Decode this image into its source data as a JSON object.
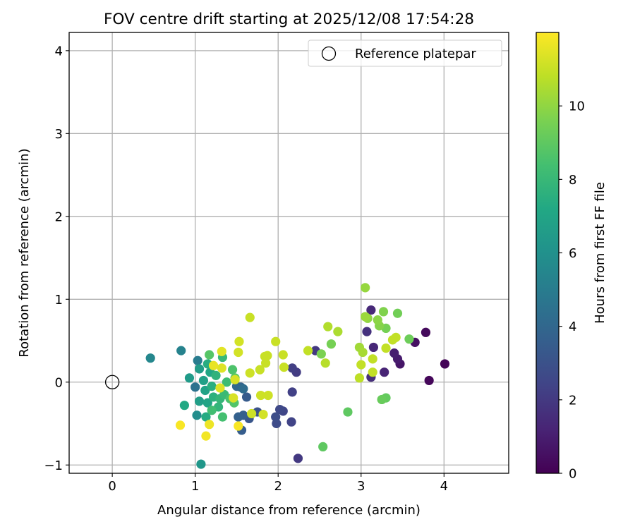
{
  "chart_data": {
    "type": "scatter",
    "title": "FOV centre drift starting at 2025/12/08 17:54:28",
    "xlabel": "Angular distance from reference (arcmin)",
    "ylabel": "Rotation from reference (arcmin)",
    "xlim": [
      -0.52,
      4.78
    ],
    "ylim": [
      -1.1,
      4.22
    ],
    "xticks": [
      0,
      1,
      2,
      3,
      4
    ],
    "yticks": [
      -1,
      0,
      1,
      2,
      3,
      4
    ],
    "grid": true,
    "legend": {
      "label": "Reference platepar",
      "location": "top-right"
    },
    "reference_point": {
      "x": 0,
      "y": 0
    },
    "colorbar": {
      "label": "Hours from first FF file",
      "min": 0,
      "max": 12,
      "ticks": [
        0,
        2,
        4,
        6,
        8,
        10
      ],
      "colormap": "viridis"
    },
    "points": [
      {
        "x": 4.01,
        "y": 0.22,
        "h": 0.1
      },
      {
        "x": 3.82,
        "y": 0.02,
        "h": 0.2
      },
      {
        "x": 3.78,
        "y": 0.6,
        "h": 0.3
      },
      {
        "x": 3.65,
        "y": 0.48,
        "h": 0.5
      },
      {
        "x": 3.47,
        "y": 0.22,
        "h": 0.7
      },
      {
        "x": 3.44,
        "y": 0.28,
        "h": 0.9
      },
      {
        "x": 3.4,
        "y": 0.35,
        "h": 1.0
      },
      {
        "x": 3.28,
        "y": 0.12,
        "h": 1.2
      },
      {
        "x": 3.15,
        "y": 0.42,
        "h": 1.3
      },
      {
        "x": 3.12,
        "y": 0.87,
        "h": 1.4
      },
      {
        "x": 3.12,
        "y": 0.06,
        "h": 1.6
      },
      {
        "x": 3.07,
        "y": 0.61,
        "h": 1.7
      },
      {
        "x": 2.24,
        "y": -0.92,
        "h": 2.0
      },
      {
        "x": 2.45,
        "y": 0.38,
        "h": 2.0
      },
      {
        "x": 2.22,
        "y": 0.12,
        "h": 2.1
      },
      {
        "x": 2.17,
        "y": 0.17,
        "h": 2.2
      },
      {
        "x": 2.17,
        "y": -0.12,
        "h": 2.3
      },
      {
        "x": 2.16,
        "y": -0.48,
        "h": 2.4
      },
      {
        "x": 2.06,
        "y": -0.35,
        "h": 2.5
      },
      {
        "x": 2.02,
        "y": -0.33,
        "h": 2.6
      },
      {
        "x": 1.98,
        "y": -0.5,
        "h": 2.7
      },
      {
        "x": 1.97,
        "y": -0.42,
        "h": 2.8
      },
      {
        "x": 1.75,
        "y": -0.36,
        "h": 3.0
      },
      {
        "x": 1.65,
        "y": -0.44,
        "h": 3.2
      },
      {
        "x": 1.62,
        "y": -0.18,
        "h": 3.4
      },
      {
        "x": 1.56,
        "y": -0.58,
        "h": 3.5
      },
      {
        "x": 1.58,
        "y": -0.4,
        "h": 3.6
      },
      {
        "x": 1.52,
        "y": -0.42,
        "h": 3.7
      },
      {
        "x": 1.55,
        "y": -0.06,
        "h": 3.8
      },
      {
        "x": 1.5,
        "y": -0.05,
        "h": 4.0
      },
      {
        "x": 1.58,
        "y": -0.08,
        "h": 4.2
      },
      {
        "x": 1.0,
        "y": -0.06,
        "h": 4.5
      },
      {
        "x": 1.03,
        "y": 0.26,
        "h": 5.0
      },
      {
        "x": 0.83,
        "y": 0.38,
        "h": 5.3
      },
      {
        "x": 0.46,
        "y": 0.29,
        "h": 5.5
      },
      {
        "x": 1.02,
        "y": -0.4,
        "h": 5.8
      },
      {
        "x": 1.07,
        "y": -0.99,
        "h": 6.3
      },
      {
        "x": 0.93,
        "y": 0.05,
        "h": 6.5
      },
      {
        "x": 1.05,
        "y": 0.16,
        "h": 6.6
      },
      {
        "x": 1.05,
        "y": -0.23,
        "h": 6.7
      },
      {
        "x": 1.1,
        "y": 0.02,
        "h": 6.8
      },
      {
        "x": 1.12,
        "y": -0.1,
        "h": 6.9
      },
      {
        "x": 1.15,
        "y": -0.25,
        "h": 7.0
      },
      {
        "x": 1.18,
        "y": 0.12,
        "h": 7.1
      },
      {
        "x": 0.87,
        "y": -0.28,
        "h": 7.2
      },
      {
        "x": 1.13,
        "y": -0.42,
        "h": 7.3
      },
      {
        "x": 1.15,
        "y": 0.22,
        "h": 7.4
      },
      {
        "x": 1.2,
        "y": -0.05,
        "h": 7.5
      },
      {
        "x": 1.22,
        "y": -0.18,
        "h": 7.6
      },
      {
        "x": 1.25,
        "y": 0.08,
        "h": 7.7
      },
      {
        "x": 1.28,
        "y": -0.3,
        "h": 7.8
      },
      {
        "x": 1.3,
        "y": -0.2,
        "h": 7.9
      },
      {
        "x": 1.33,
        "y": 0.3,
        "h": 8.0
      },
      {
        "x": 1.35,
        "y": -0.15,
        "h": 8.1
      },
      {
        "x": 1.38,
        "y": 0.0,
        "h": 8.2
      },
      {
        "x": 1.2,
        "y": -0.34,
        "h": 8.3
      },
      {
        "x": 1.33,
        "y": -0.42,
        "h": 8.4
      },
      {
        "x": 1.42,
        "y": -0.2,
        "h": 8.5
      },
      {
        "x": 1.45,
        "y": 0.15,
        "h": 8.6
      },
      {
        "x": 1.47,
        "y": -0.25,
        "h": 8.7
      },
      {
        "x": 1.17,
        "y": 0.33,
        "h": 8.8
      },
      {
        "x": 1.48,
        "y": 0.05,
        "h": 8.9
      },
      {
        "x": 2.54,
        "y": -0.78,
        "h": 9.0
      },
      {
        "x": 2.84,
        "y": -0.36,
        "h": 9.0
      },
      {
        "x": 3.3,
        "y": -0.19,
        "h": 9.1
      },
      {
        "x": 3.25,
        "y": -0.21,
        "h": 9.2
      },
      {
        "x": 3.58,
        "y": 0.52,
        "h": 9.3
      },
      {
        "x": 3.44,
        "y": 0.83,
        "h": 9.4
      },
      {
        "x": 3.3,
        "y": 0.65,
        "h": 9.5
      },
      {
        "x": 2.64,
        "y": 0.46,
        "h": 9.5
      },
      {
        "x": 2.52,
        "y": 0.34,
        "h": 9.6
      },
      {
        "x": 3.27,
        "y": 0.85,
        "h": 9.7
      },
      {
        "x": 3.22,
        "y": 0.68,
        "h": 9.8
      },
      {
        "x": 3.2,
        "y": 0.75,
        "h": 9.9
      },
      {
        "x": 3.08,
        "y": 0.77,
        "h": 10.0
      },
      {
        "x": 3.05,
        "y": 1.14,
        "h": 10.1
      },
      {
        "x": 3.05,
        "y": 0.79,
        "h": 10.2
      },
      {
        "x": 2.98,
        "y": 0.42,
        "h": 10.3
      },
      {
        "x": 3.02,
        "y": 0.36,
        "h": 10.4
      },
      {
        "x": 2.72,
        "y": 0.61,
        "h": 10.5
      },
      {
        "x": 2.6,
        "y": 0.67,
        "h": 10.6
      },
      {
        "x": 2.57,
        "y": 0.23,
        "h": 10.7
      },
      {
        "x": 2.98,
        "y": 0.05,
        "h": 10.8
      },
      {
        "x": 3.0,
        "y": 0.21,
        "h": 10.9
      },
      {
        "x": 3.14,
        "y": 0.12,
        "h": 10.9
      },
      {
        "x": 3.14,
        "y": 0.28,
        "h": 10.9
      },
      {
        "x": 3.3,
        "y": 0.41,
        "h": 10.9
      },
      {
        "x": 3.38,
        "y": 0.51,
        "h": 10.9
      },
      {
        "x": 3.42,
        "y": 0.54,
        "h": 10.9
      },
      {
        "x": 2.36,
        "y": 0.38,
        "h": 10.9
      },
      {
        "x": 2.07,
        "y": 0.18,
        "h": 11.0
      },
      {
        "x": 2.06,
        "y": 0.33,
        "h": 11.0
      },
      {
        "x": 1.97,
        "y": 0.49,
        "h": 11.0
      },
      {
        "x": 1.87,
        "y": 0.32,
        "h": 11.0
      },
      {
        "x": 1.84,
        "y": 0.31,
        "h": 11.0
      },
      {
        "x": 1.85,
        "y": 0.23,
        "h": 11.0
      },
      {
        "x": 1.78,
        "y": 0.15,
        "h": 11.0
      },
      {
        "x": 1.66,
        "y": 0.78,
        "h": 11.0
      },
      {
        "x": 1.66,
        "y": 0.11,
        "h": 11.1
      },
      {
        "x": 1.88,
        "y": -0.16,
        "h": 11.1
      },
      {
        "x": 1.79,
        "y": -0.16,
        "h": 11.1
      },
      {
        "x": 1.68,
        "y": -0.38,
        "h": 11.1
      },
      {
        "x": 1.82,
        "y": -0.39,
        "h": 11.2
      },
      {
        "x": 1.53,
        "y": 0.49,
        "h": 11.2
      },
      {
        "x": 1.52,
        "y": 0.36,
        "h": 11.2
      },
      {
        "x": 1.46,
        "y": -0.19,
        "h": 11.3
      },
      {
        "x": 1.48,
        "y": 0.03,
        "h": 11.3
      },
      {
        "x": 1.3,
        "y": -0.07,
        "h": 11.4
      },
      {
        "x": 1.32,
        "y": 0.17,
        "h": 11.4
      },
      {
        "x": 1.32,
        "y": 0.37,
        "h": 11.5
      },
      {
        "x": 1.22,
        "y": 0.2,
        "h": 11.6
      },
      {
        "x": 1.17,
        "y": -0.51,
        "h": 11.7
      },
      {
        "x": 1.13,
        "y": -0.65,
        "h": 11.8
      },
      {
        "x": 0.82,
        "y": -0.52,
        "h": 11.9
      },
      {
        "x": 1.52,
        "y": -0.53,
        "h": 11.9
      }
    ]
  }
}
